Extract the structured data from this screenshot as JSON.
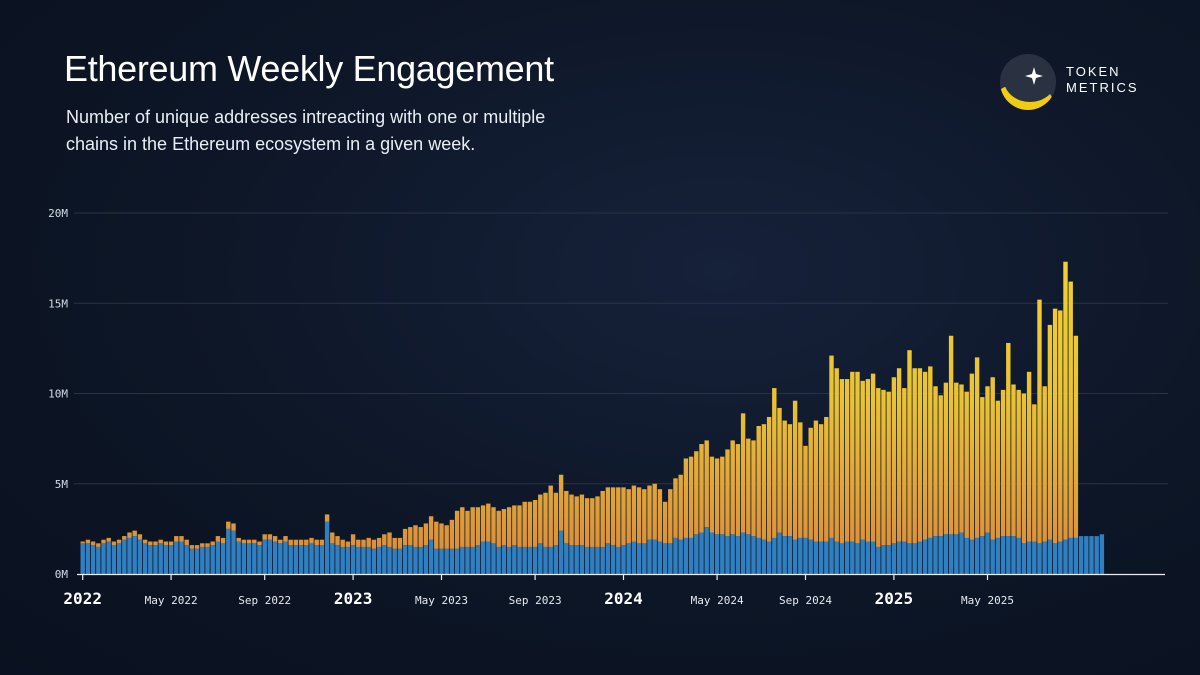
{
  "title": "Ethereum Weekly Engagement",
  "subtitle": "Number of unique addresses intreacting with one or multiple chains in the Ethereum ecosystem in a given week.",
  "logo": {
    "line1": "TOKEN",
    "line2": "METRICS",
    "icon": "token-metrics-logo-icon"
  },
  "colors": {
    "background": "#0d1626",
    "series_base": "#2f7fc1",
    "series_top_high": "#f2d12e",
    "series_top_low": "#d98a3c",
    "grid": "#2a3346"
  },
  "chart_data": {
    "type": "bar",
    "stacked": true,
    "grid": true,
    "y_ticks": [
      "0M",
      "5M",
      "10M",
      "15M",
      "20M"
    ],
    "y_tick_values": [
      0,
      5,
      10,
      15,
      20
    ],
    "ylim": [
      0,
      20
    ],
    "x_ticks": [
      {
        "label": "2022",
        "week": 0,
        "major": true
      },
      {
        "label": "May 2022",
        "week": 17,
        "major": false
      },
      {
        "label": "Sep 2022",
        "week": 35,
        "major": false
      },
      {
        "label": "2023",
        "week": 52,
        "major": true
      },
      {
        "label": "May 2023",
        "week": 69,
        "major": false
      },
      {
        "label": "Sep 2023",
        "week": 87,
        "major": false
      },
      {
        "label": "2024",
        "week": 104,
        "major": true
      },
      {
        "label": "May 2024",
        "week": 122,
        "major": false
      },
      {
        "label": "Sep 2024",
        "week": 139,
        "major": false
      },
      {
        "label": "2025",
        "week": 156,
        "major": true
      },
      {
        "label": "May 2025",
        "week": 174,
        "major": false
      }
    ],
    "series": [
      {
        "name": "",
        "values": [
          1.7,
          1.7,
          1.6,
          1.5,
          1.7,
          1.8,
          1.6,
          1.7,
          1.9,
          2.0,
          2.1,
          1.9,
          1.7,
          1.6,
          1.6,
          1.7,
          1.6,
          1.6,
          1.8,
          1.8,
          1.6,
          1.4,
          1.4,
          1.5,
          1.5,
          1.6,
          1.8,
          1.7,
          2.5,
          2.4,
          1.8,
          1.7,
          1.7,
          1.7,
          1.6,
          1.9,
          1.9,
          1.8,
          1.7,
          1.8,
          1.6,
          1.6,
          1.6,
          1.6,
          1.7,
          1.6,
          1.6,
          2.9,
          1.7,
          1.6,
          1.5,
          1.5,
          1.6,
          1.5,
          1.5,
          1.5,
          1.4,
          1.5,
          1.6,
          1.5,
          1.4,
          1.4,
          1.6,
          1.6,
          1.5,
          1.5,
          1.6,
          1.9,
          1.4,
          1.4,
          1.4,
          1.4,
          1.4,
          1.5,
          1.5,
          1.5,
          1.6,
          1.8,
          1.8,
          1.7,
          1.5,
          1.6,
          1.5,
          1.6,
          1.5,
          1.5,
          1.5,
          1.5,
          1.7,
          1.5,
          1.5,
          1.6,
          2.4,
          1.7,
          1.6,
          1.6,
          1.6,
          1.5,
          1.5,
          1.5,
          1.5,
          1.7,
          1.6,
          1.5,
          1.6,
          1.7,
          1.8,
          1.7,
          1.7,
          1.9,
          1.9,
          1.8,
          1.7,
          1.7,
          2.0,
          1.9,
          2.0,
          2.0,
          2.2,
          2.3,
          2.6,
          2.3,
          2.2,
          2.2,
          2.1,
          2.2,
          2.1,
          2.3,
          2.2,
          2.1,
          2.0,
          1.9,
          1.8,
          2.0,
          2.3,
          2.1,
          2.1,
          1.9,
          2.0,
          2.0,
          1.9,
          1.8,
          1.8,
          1.8,
          2.0,
          1.8,
          1.7,
          1.8,
          1.8,
          1.7,
          1.9,
          1.8,
          1.8,
          1.5,
          1.6,
          1.6,
          1.7,
          1.8,
          1.8,
          1.7,
          1.7,
          1.8,
          1.9,
          2.0,
          2.1,
          2.1,
          2.2,
          2.2,
          2.2,
          2.3,
          2.0,
          1.9,
          2.0,
          2.1,
          2.3,
          1.9,
          2.0,
          2.1,
          2.1,
          2.1,
          2.0,
          1.7,
          1.8,
          1.8,
          1.7,
          1.8,
          1.9,
          1.7,
          1.8,
          1.9,
          2.0,
          2.0,
          2.1,
          2.1,
          2.1,
          2.1,
          2.2
        ],
        "color": "#2f7fc1"
      },
      {
        "name": "",
        "values": [
          0.1,
          0.2,
          0.2,
          0.2,
          0.2,
          0.2,
          0.2,
          0.2,
          0.2,
          0.3,
          0.3,
          0.3,
          0.2,
          0.2,
          0.2,
          0.2,
          0.2,
          0.2,
          0.3,
          0.3,
          0.3,
          0.2,
          0.2,
          0.2,
          0.2,
          0.2,
          0.3,
          0.3,
          0.4,
          0.4,
          0.2,
          0.2,
          0.2,
          0.2,
          0.2,
          0.3,
          0.3,
          0.3,
          0.2,
          0.3,
          0.3,
          0.3,
          0.3,
          0.3,
          0.3,
          0.3,
          0.3,
          0.4,
          0.6,
          0.5,
          0.4,
          0.3,
          0.6,
          0.4,
          0.4,
          0.5,
          0.5,
          0.5,
          0.6,
          0.8,
          0.6,
          0.6,
          0.9,
          1.0,
          1.2,
          1.1,
          1.2,
          1.3,
          1.5,
          1.4,
          1.3,
          1.6,
          2.1,
          2.2,
          2.0,
          2.2,
          2.1,
          2.0,
          2.1,
          2.0,
          2.0,
          2.0,
          2.2,
          2.2,
          2.3,
          2.5,
          2.5,
          2.6,
          2.7,
          3.0,
          3.4,
          2.9,
          3.1,
          2.9,
          2.8,
          2.7,
          2.8,
          2.7,
          2.7,
          2.8,
          3.1,
          3.1,
          3.2,
          3.3,
          3.2,
          3.0,
          3.1,
          3.1,
          3.0,
          3.0,
          3.1,
          2.9,
          2.3,
          3.0,
          3.3,
          3.6,
          4.4,
          4.5,
          4.6,
          4.9,
          4.8,
          4.2,
          4.2,
          4.3,
          4.8,
          5.2,
          5.1,
          6.6,
          5.3,
          5.3,
          6.2,
          6.4,
          6.9,
          8.3,
          6.9,
          6.4,
          6.2,
          7.7,
          6.4,
          5.1,
          6.2,
          6.7,
          6.5,
          6.9,
          10.1,
          9.6,
          9.1,
          9.0,
          9.4,
          9.5,
          8.8,
          9.0,
          9.3,
          8.8,
          8.6,
          8.5,
          9.2,
          9.6,
          8.5,
          10.7,
          9.7,
          9.6,
          9.3,
          9.5,
          8.3,
          7.8,
          8.4,
          11.0,
          8.4,
          8.2,
          8.1,
          9.2,
          10.0,
          7.7,
          8.1,
          9.0,
          7.6,
          8.1,
          10.7,
          8.4,
          8.2,
          8.3,
          9.4,
          7.6,
          13.5,
          8.6,
          11.9,
          13.0,
          12.8,
          15.4,
          14.2,
          11.2
        ]
      }
    ]
  }
}
